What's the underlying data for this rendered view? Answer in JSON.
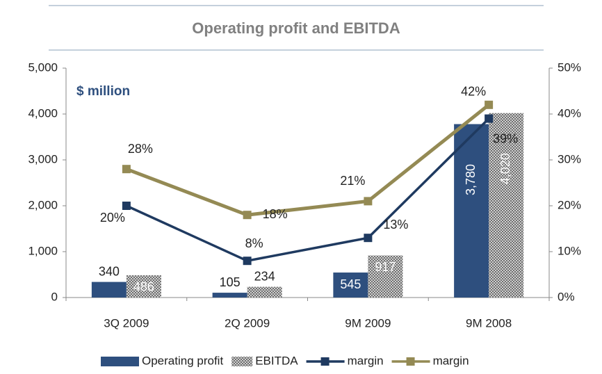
{
  "chart_data": {
    "type": "bar",
    "title": "Operating profit and EBITDA",
    "annotation": "$ million",
    "categories": [
      "3Q 2009",
      "2Q 2009",
      "9M 2009",
      "9M 2008"
    ],
    "series": [
      {
        "name": "Operating profit",
        "type": "bar",
        "color": "#2e4f7e",
        "values": [
          340,
          105,
          545,
          3780
        ],
        "value_labels": [
          "340",
          "105",
          "545",
          "3,780"
        ]
      },
      {
        "name": "EBITDA",
        "type": "bar",
        "color": "#7a7a7a",
        "pattern": "checker",
        "values": [
          486,
          234,
          917,
          4020
        ],
        "value_labels": [
          "486",
          "234",
          "917",
          "4,020"
        ]
      },
      {
        "name": "margin",
        "type": "line",
        "axis": "y2",
        "color": "#1f3a60",
        "values": [
          20,
          8,
          13,
          39
        ],
        "value_labels": [
          "20%",
          "8%",
          "13%",
          "39%"
        ]
      },
      {
        "name": "margin",
        "type": "line",
        "axis": "y2",
        "color": "#948a54",
        "values": [
          28,
          18,
          21,
          42
        ],
        "value_labels": [
          "28%",
          "18%",
          "21%",
          "42%"
        ]
      }
    ],
    "ylim": [
      0,
      5000
    ],
    "yticks": [
      0,
      {
        "value": 1000,
        "label": "1,000"
      },
      {
        "value": 2000,
        "label": "2,000"
      },
      {
        "value": 3000,
        "label": "3,000"
      },
      {
        "value": 4000,
        "label": "4,000"
      },
      {
        "value": 5000,
        "label": "5,000"
      }
    ],
    "y2lim": [
      0,
      50
    ],
    "y2ticks": [
      {
        "value": 0,
        "label": "0%"
      },
      {
        "value": 10,
        "label": "10%"
      },
      {
        "value": 20,
        "label": "20%"
      },
      {
        "value": 30,
        "label": "30%"
      },
      {
        "value": 40,
        "label": "40%"
      },
      {
        "value": 50,
        "label": "50%"
      }
    ],
    "grid": false,
    "legend": "bottom"
  }
}
